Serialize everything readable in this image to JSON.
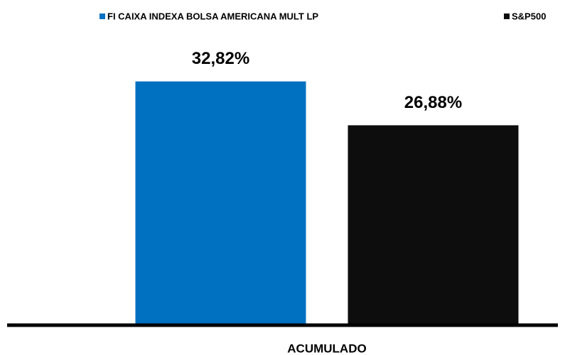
{
  "chart_data": {
    "type": "bar",
    "categories": [
      "ACUMULADO"
    ],
    "series": [
      {
        "name": "FI CAIXA INDEXA BOLSA AMERICANA MULT LP",
        "color": "#0070c0",
        "values": [
          32.82
        ],
        "value_labels": [
          "32,82%"
        ]
      },
      {
        "name": "S&P500",
        "color": "#0d0d0d",
        "values": [
          26.88
        ],
        "value_labels": [
          "26,88%"
        ]
      }
    ],
    "ylim": [
      0,
      40
    ]
  }
}
